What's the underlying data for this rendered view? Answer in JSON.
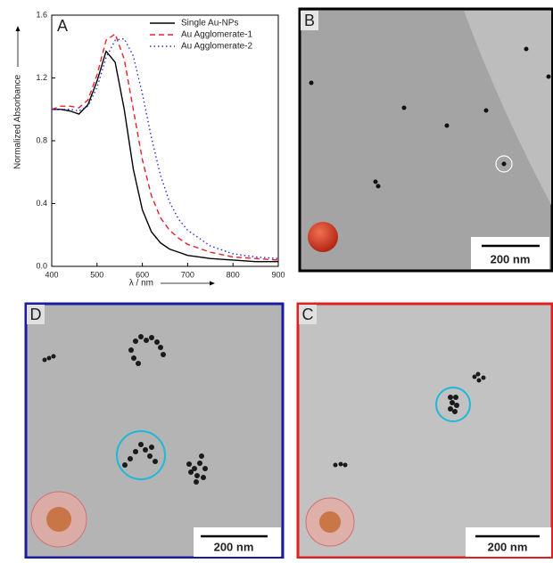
{
  "chart_data": {
    "type": "line",
    "panel": "A",
    "x_label": "λ / nm",
    "y_label": "Normalized Absorbance",
    "x": [
      400,
      420,
      440,
      460,
      480,
      500,
      520,
      540,
      560,
      580,
      600,
      620,
      640,
      660,
      680,
      700,
      750,
      800,
      850,
      900
    ],
    "series": [
      {
        "name": "Single Au-NPs",
        "color": "#000000",
        "dash": "",
        "values": [
          1.0,
          1.0,
          0.99,
          0.97,
          1.03,
          1.18,
          1.37,
          1.3,
          1.0,
          0.62,
          0.36,
          0.22,
          0.15,
          0.11,
          0.09,
          0.07,
          0.05,
          0.04,
          0.03,
          0.03
        ]
      },
      {
        "name": "Au Agglomerate-1",
        "color": "#e8202a",
        "dash": "6,4",
        "values": [
          1.0,
          1.02,
          1.02,
          1.01,
          1.06,
          1.22,
          1.44,
          1.48,
          1.32,
          1.0,
          0.68,
          0.45,
          0.31,
          0.23,
          0.18,
          0.14,
          0.09,
          0.06,
          0.05,
          0.04
        ]
      },
      {
        "name": "Au Agglomerate-2",
        "color": "#2a2ae0",
        "dash": "1.5,3",
        "values": [
          1.0,
          1.0,
          1.0,
          0.99,
          1.02,
          1.14,
          1.33,
          1.44,
          1.45,
          1.34,
          1.1,
          0.82,
          0.58,
          0.41,
          0.3,
          0.23,
          0.13,
          0.08,
          0.06,
          0.05
        ]
      }
    ],
    "xlim": [
      400,
      900
    ],
    "xticks": [
      400,
      500,
      600,
      700,
      800,
      900
    ],
    "ylim": [
      0,
      1.6
    ],
    "yticks": [
      {
        "value": 0,
        "label": "0.0"
      },
      0.4,
      0.8,
      1.2,
      1.6
    ],
    "legend": "upper right"
  },
  "panels": [
    {
      "label": "B",
      "scale_bar": "200 nm"
    },
    {
      "label": "D",
      "scale_bar": "200 nm"
    },
    {
      "label": "C",
      "scale_bar": "200 nm"
    }
  ]
}
